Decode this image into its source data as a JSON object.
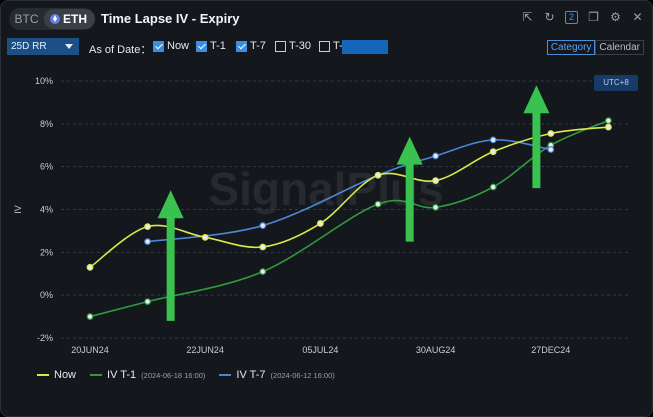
{
  "header": {
    "assets": [
      "BTC",
      "ETH"
    ],
    "active_asset": "ETH",
    "title": "Time Lapse IV - Expiry",
    "window_icons": [
      "export-icon",
      "refresh-icon",
      "layout-2-icon",
      "copy-icon",
      "settings-icon",
      "close-icon"
    ],
    "layout_label": "2"
  },
  "toolbar": {
    "metric_select": "25D RR",
    "as_of_label": "As of Date：",
    "options": [
      {
        "label": "Now",
        "checked": true
      },
      {
        "label": "T-1",
        "checked": true
      },
      {
        "label": "T-7",
        "checked": true
      },
      {
        "label": "T-30",
        "checked": false
      },
      {
        "label": "T-",
        "checked": false
      }
    ],
    "view_options": [
      "Category",
      "Calendar"
    ],
    "active_view": "Category"
  },
  "timezone_badge": "UTC+8",
  "watermark": "SignalPlus",
  "colors": {
    "now": "#d9e84a",
    "t1": "#2f9a3f",
    "t7": "#4a86d4",
    "arrow": "#39c24f",
    "grid": "#2e3a4c",
    "accent": "#3a8ee0"
  },
  "chart_data": {
    "type": "line",
    "ylabel": "IV",
    "yticks": [
      "10%",
      "8%",
      "6%",
      "4%",
      "2%",
      "0%",
      "-2%"
    ],
    "ylim": [
      -2,
      10
    ],
    "xlim": [
      0,
      9
    ],
    "categories": [
      "20JUN24",
      "22JUN24",
      "05JUL24",
      "30AUG24",
      "27DEC24"
    ],
    "category_positions": [
      0,
      2,
      4,
      6,
      8
    ],
    "grid": true,
    "legend_position": "bottom-left",
    "series": [
      {
        "name": "Now",
        "key": "now",
        "sub": "",
        "x": [
          0,
          1,
          2,
          3,
          4,
          5,
          6,
          7,
          8,
          9
        ],
        "y": [
          1.3,
          3.2,
          2.7,
          2.25,
          3.35,
          5.6,
          5.35,
          6.7,
          7.55,
          7.85
        ]
      },
      {
        "name": "IV T-1",
        "key": "t1",
        "sub": "(2024-06-18 16:00)",
        "x": [
          0,
          1,
          3,
          5,
          6,
          7,
          8,
          9
        ],
        "y": [
          -1.0,
          -0.3,
          1.1,
          4.25,
          4.1,
          5.05,
          7.0,
          8.15
        ]
      },
      {
        "name": "IV T-7",
        "key": "t7",
        "sub": "(2024-06-12 16:00)",
        "x": [
          1,
          3,
          5,
          6,
          7,
          8
        ],
        "y": [
          2.5,
          3.25,
          5.6,
          6.5,
          7.25,
          6.8
        ]
      }
    ],
    "annotations": [
      {
        "type": "arrow-up",
        "x": 1.4,
        "y_from": -1.2,
        "y_to": 4.9
      },
      {
        "type": "arrow-up",
        "x": 5.55,
        "y_from": 2.5,
        "y_to": 7.4
      },
      {
        "type": "arrow-up",
        "x": 7.75,
        "y_from": 5.0,
        "y_to": 9.8
      }
    ]
  }
}
